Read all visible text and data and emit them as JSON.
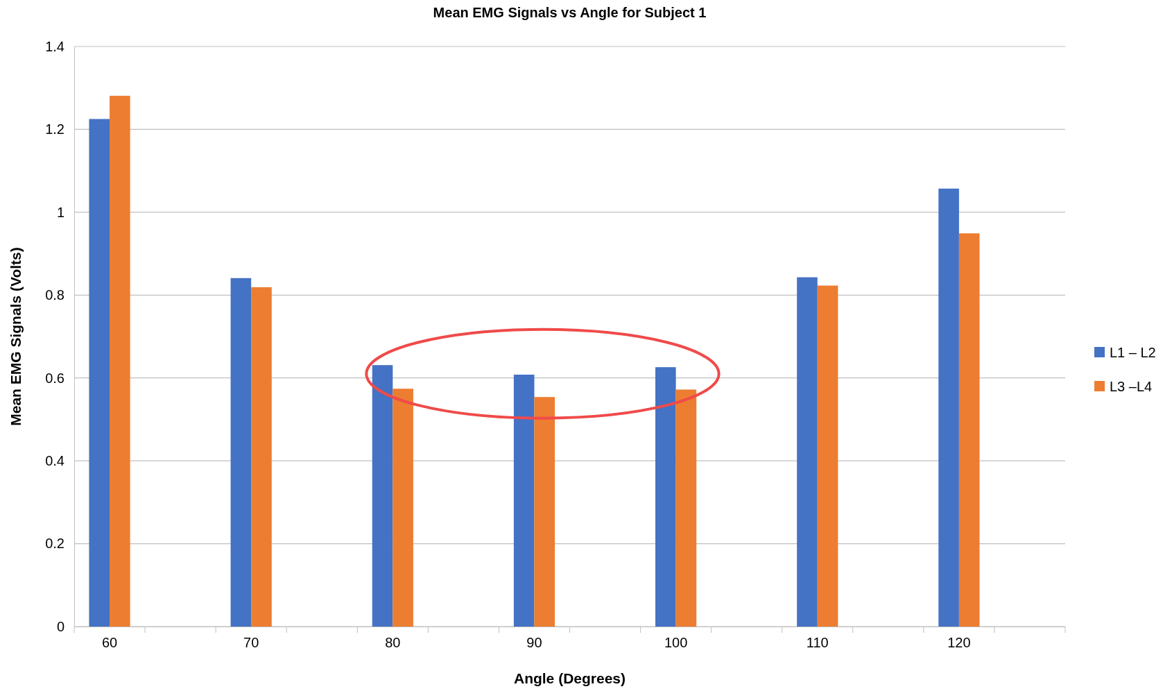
{
  "chart_data": {
    "type": "bar",
    "title": "Mean EMG Signals vs Angle for Subject 1",
    "xlabel": "Angle (Degrees)",
    "ylabel": "Mean EMG Signals (Volts)",
    "categories": [
      "60",
      null,
      "70",
      null,
      "80",
      null,
      "90",
      null,
      "100",
      null,
      "110",
      null,
      "120",
      null
    ],
    "series": [
      {
        "name": "L1 – L2",
        "color": "#4472c4",
        "values": [
          1.225,
          null,
          0.841,
          null,
          0.631,
          null,
          0.608,
          null,
          0.626,
          null,
          0.843,
          null,
          1.057,
          null
        ]
      },
      {
        "name": "L3 –L4",
        "color": "#ed7d31",
        "values": [
          1.281,
          null,
          0.819,
          null,
          0.574,
          null,
          0.554,
          null,
          0.572,
          null,
          0.823,
          null,
          0.949,
          null
        ]
      }
    ],
    "ylim": [
      0,
      1.4
    ],
    "yticks": [
      0,
      0.2,
      0.4,
      0.6,
      0.8,
      1,
      1.2,
      1.4
    ],
    "grid": "y",
    "legend": "right"
  }
}
